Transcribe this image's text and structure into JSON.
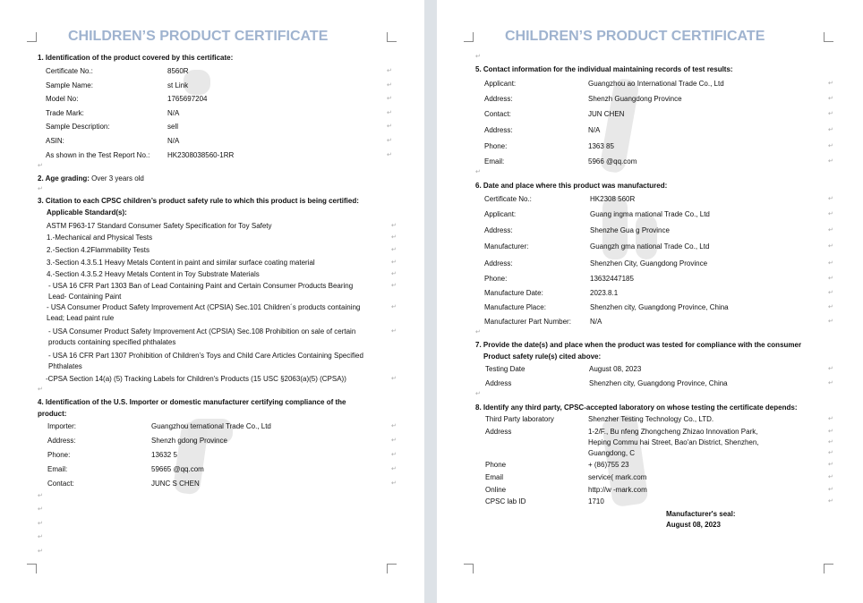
{
  "title": "CHILDREN’S PRODUCT CERTIFICATE",
  "s1": {
    "heading": "1. Identification of the product covered by this certificate:",
    "rows": [
      [
        "Certificate No.:",
        "8560R"
      ],
      [
        "Sample Name:",
        "st Link"
      ],
      [
        "Model No:",
        "1765697204"
      ],
      [
        "Trade Mark:",
        "N/A"
      ],
      [
        "Sample Description:",
        "sell"
      ],
      [
        "ASIN:",
        "N/A"
      ],
      [
        "As shown in the Test Report No.:",
        "HK2308038560-1RR"
      ]
    ]
  },
  "s2": {
    "heading": "2. Age grading:",
    "value": "Over 3 years old"
  },
  "s3": {
    "heading": "3. Citation to each CPSC children’s product safety rule to which this product is being certified:",
    "sub": "Applicable Standard(s):",
    "lines": [
      "ASTM F963-17 Standard Consumer Safety Specification for Toy Safety",
      "1.-Mechanical and Physical Tests",
      "2.-Section 4.2Flammability Tests",
      "3.-Section 4.3.5.1 Heavy Metals Content in paint and similar surface coating material",
      "4.-Section 4.3.5.2 Heavy Metals Content in Toy Substrate Materials",
      "- USA 16 CFR Part 1303 Ban of Lead Containing Paint and Certain Consumer Products Bearing",
      "Lead- Containing Paint",
      "- USA Consumer Product Safety Improvement Act (CPSIA) Sec.101 Children´s products containing",
      "Lead; Lead paint rule",
      "- USA Consumer Product Safety Improvement Act (CPSIA) Sec.108 Prohibition on sale of certain",
      "products containing specified phthalates",
      "- USA 16 CFR Part 1307 Prohibition of Children’s Toys and Child Care Articles Containing Specified",
      "Phthalates",
      "-CPSA Section 14(a) (5) Tracking Labels for Children's Products (15 USC §2063(a)(5) (CPSA))"
    ]
  },
  "s4": {
    "heading1": "4. Identification of the U.S. Importer or domestic manufacturer certifying compliance of the",
    "heading2": "product:",
    "rows": [
      [
        "Importer:",
        "Guangzhou                    ternational Trade Co., Ltd"
      ],
      [
        "Address:",
        "Shenzh                 gdong Province"
      ],
      [
        "Phone:",
        "13632         5"
      ],
      [
        "Email:",
        "59665          @qq.com"
      ],
      [
        "Contact:",
        "JUNC          S CHEN"
      ]
    ]
  },
  "s5": {
    "heading": "5. Contact information for the individual maintaining records of test results:",
    "rows": [
      [
        "Applicant:",
        "Guangzhou             ao International Trade Co., Ltd"
      ],
      [
        "Address:",
        "Shenzh              Guangdong Province"
      ],
      [
        "Contact:",
        "JUN           CHEN"
      ],
      [
        "Address:",
        "N/A"
      ],
      [
        "Phone:",
        "1363           85"
      ],
      [
        "Email:",
        "5966            @qq.com"
      ]
    ]
  },
  "s6": {
    "heading": "6. Date and place where this product was manufactured:",
    "rows": [
      [
        "Certificate No.:",
        "HK2308      560R"
      ],
      [
        "Applicant:",
        "Guang          ingma       rnational Trade Co., Ltd"
      ],
      [
        "Address:",
        "Shenzhe          Gua        g Province"
      ],
      [
        "Manufacturer:",
        "Guangzh        gma        national Trade Co., Ltd"
      ],
      [
        "Address:",
        "Shenzhen City, Guangdong Province"
      ],
      [
        "Phone:",
        "13632447185"
      ],
      [
        "Manufacture Date:",
        "2023.8.1"
      ],
      [
        "Manufacture Place:",
        "Shenzhen city, Guangdong Province, China"
      ],
      [
        "Manufacturer Part Number:",
        "N/A"
      ]
    ]
  },
  "s7": {
    "heading1": "7. Provide the date(s) and place when the product was tested for compliance with the consumer",
    "heading2": "Product safety rule(s) cited above:",
    "rows": [
      [
        "Testing Date",
        "August 08, 2023"
      ],
      [
        "Address",
        "Shenzhen city, Guangdong Province, China"
      ]
    ]
  },
  "s8": {
    "heading": "8. Identify any third party, CPSC-accepted laboratory on whose testing the certificate depends:",
    "rows": [
      [
        "Third Party laboratory",
        "Shenzher          Testing Technology Co., LTD."
      ],
      [
        "Address",
        "1-2/F., Bu           nfeng Zhongcheng Zhizao Innovation Park,"
      ],
      [
        "",
        "Heping Commu          hai Street, Bao'an District, Shenzhen,"
      ],
      [
        "",
        "Guangdong, C"
      ],
      [
        "Phone",
        "+ (86)755 23"
      ],
      [
        "Email",
        "service(          mark.com"
      ],
      [
        "Online",
        "http://w          -mark.com"
      ],
      [
        "CPSC lab ID",
        "1710"
      ]
    ]
  },
  "seal": {
    "label": "Manufacturer's seal:",
    "date": "August 08, 2023"
  },
  "colors": {
    "title": "#9fb3cf",
    "gap": "#dde2e7"
  }
}
